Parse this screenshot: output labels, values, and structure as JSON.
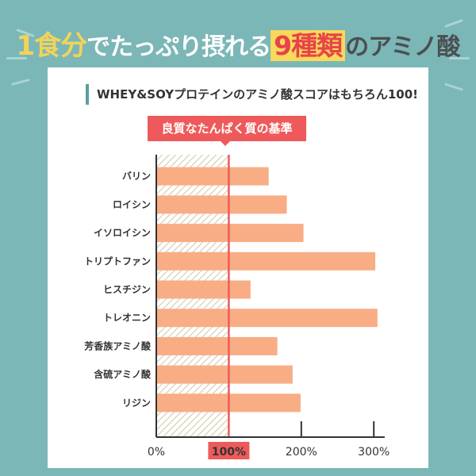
{
  "header": {
    "title_part1": "1食分",
    "title_part2": "でたっぷり摂れる",
    "title_part3": "9種類",
    "title_part4": "のアミノ酸"
  },
  "subtitle": "WHEY&SOYプロテインのアミノ酸スコアはもちろん100!",
  "badge": "良質なたんぱく質の基準",
  "colors": {
    "background": "#7bb7b6",
    "bar": "#f8ad85",
    "reference_line": "#ee5a5b",
    "hatch": "#d9cfb5",
    "highlight_yellow": "#f7d95c"
  },
  "chart_data": {
    "type": "bar",
    "orientation": "horizontal",
    "categories": [
      "バリン",
      "ロイシン",
      "イソロイシン",
      "トリプトファン",
      "ヒスチジン",
      "トレオニン",
      "芳香族アミノ酸",
      "含硫アミノ酸",
      "リジン"
    ],
    "values": [
      155,
      180,
      203,
      302,
      130,
      305,
      167,
      188,
      199
    ],
    "unit": "%",
    "xlim": [
      0,
      320
    ],
    "ticks": [
      "0%",
      "100%",
      "200%",
      "300%"
    ],
    "tick_values": [
      0,
      100,
      200,
      300
    ],
    "highlighted_tick": "100%",
    "reference_value": 100,
    "grid": false
  }
}
